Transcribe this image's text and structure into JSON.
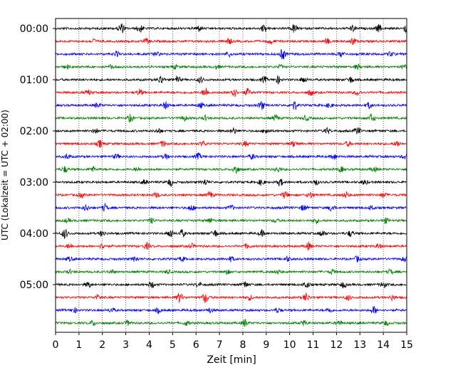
{
  "chart_data": {
    "type": "line",
    "chart_kind": "helicorder",
    "title": "",
    "xlabel": "Zeit  [min]",
    "ylabel": "UTC (Lokalzeit = UTC + 02:00)",
    "xlim": [
      0,
      15
    ],
    "x_ticks": [
      0,
      1,
      2,
      3,
      4,
      5,
      6,
      7,
      8,
      9,
      10,
      11,
      12,
      13,
      14,
      15
    ],
    "x_tick_labels": [
      "0",
      "1",
      "2",
      "3",
      "4",
      "5",
      "6",
      "7",
      "8",
      "9",
      "10",
      "11",
      "12",
      "13",
      "14",
      "15"
    ],
    "grid": "vertical dotted at each minute",
    "row_interval_min": 15,
    "y_tick_labels": [
      "00:00",
      "01:00",
      "02:00",
      "03:00",
      "04:00",
      "05:00"
    ],
    "y_tick_rows": [
      0,
      4,
      8,
      12,
      16,
      20
    ],
    "row_count": 24,
    "row_colors": [
      "#000000",
      "#ff0000",
      "#0000ff",
      "#008000"
    ],
    "bursts": [
      [
        [
          2.8,
          0.9
        ],
        [
          3.6,
          0.7
        ],
        [
          6.1,
          0.5
        ],
        [
          8.9,
          0.6
        ],
        [
          10.2,
          0.7
        ],
        [
          12.7,
          0.5
        ],
        [
          13.8,
          0.6
        ],
        [
          15.0,
          0.8
        ]
      ],
      [
        [
          1.6,
          0.4
        ],
        [
          3.9,
          0.4
        ],
        [
          7.4,
          0.5
        ],
        [
          9.2,
          0.4
        ],
        [
          11.6,
          0.4
        ],
        [
          12.7,
          0.6
        ]
      ],
      [
        [
          2.6,
          0.4
        ],
        [
          4.3,
          0.4
        ],
        [
          7.4,
          0.4
        ],
        [
          9.7,
          0.9
        ],
        [
          12.2,
          0.5
        ],
        [
          14.3,
          0.4
        ]
      ],
      [
        [
          0.5,
          0.3
        ],
        [
          2.4,
          0.3
        ],
        [
          5.1,
          0.3
        ],
        [
          6.9,
          0.3
        ],
        [
          9.6,
          0.3
        ],
        [
          12.9,
          0.4
        ],
        [
          14.9,
          0.3
        ]
      ],
      [
        [
          4.5,
          0.7
        ],
        [
          5.2,
          0.6
        ],
        [
          6.2,
          0.5
        ],
        [
          8.9,
          0.5
        ],
        [
          9.5,
          0.6
        ],
        [
          10.6,
          0.5
        ],
        [
          12.6,
          0.5
        ]
      ],
      [
        [
          1.4,
          0.4
        ],
        [
          3.6,
          0.5
        ],
        [
          6.4,
          0.8
        ],
        [
          7.6,
          0.9
        ],
        [
          8.2,
          0.6
        ],
        [
          10.9,
          0.5
        ],
        [
          12.9,
          0.4
        ]
      ],
      [
        [
          1.8,
          0.4
        ],
        [
          4.7,
          0.6
        ],
        [
          6.2,
          0.4
        ],
        [
          8.8,
          0.7
        ],
        [
          10.2,
          0.8
        ],
        [
          11.7,
          0.4
        ],
        [
          13.4,
          0.5
        ]
      ],
      [
        [
          3.2,
          0.6
        ],
        [
          5.5,
          0.4
        ],
        [
          6.4,
          0.4
        ],
        [
          9.4,
          0.5
        ],
        [
          10.7,
          0.4
        ],
        [
          13.5,
          0.7
        ]
      ],
      [
        [
          1.7,
          0.4
        ],
        [
          4.4,
          0.4
        ],
        [
          7.6,
          0.5
        ],
        [
          9.0,
          0.5
        ],
        [
          11.6,
          0.5
        ],
        [
          12.9,
          0.6
        ]
      ],
      [
        [
          1.9,
          0.6
        ],
        [
          4.6,
          0.5
        ],
        [
          6.3,
          0.4
        ],
        [
          8.1,
          0.4
        ],
        [
          10.2,
          0.5
        ],
        [
          12.5,
          0.4
        ],
        [
          14.6,
          0.5
        ]
      ],
      [
        [
          0.5,
          0.4
        ],
        [
          2.6,
          0.4
        ],
        [
          4.7,
          0.4
        ],
        [
          6.1,
          0.5
        ],
        [
          8.4,
          0.4
        ],
        [
          11.9,
          0.5
        ],
        [
          14.9,
          0.3
        ]
      ],
      [
        [
          0.4,
          0.5
        ],
        [
          1.6,
          0.4
        ],
        [
          3.5,
          0.3
        ],
        [
          7.7,
          0.8
        ],
        [
          9.5,
          0.4
        ],
        [
          12.2,
          0.4
        ],
        [
          13.6,
          0.4
        ]
      ],
      [
        [
          3.8,
          0.4
        ],
        [
          4.9,
          0.6
        ],
        [
          6.4,
          0.5
        ],
        [
          8.8,
          0.5
        ],
        [
          9.6,
          0.6
        ],
        [
          11.1,
          0.5
        ],
        [
          13.2,
          0.4
        ]
      ],
      [
        [
          1.1,
          0.4
        ],
        [
          4.3,
          0.4
        ],
        [
          6.6,
          0.5
        ],
        [
          9.8,
          0.6
        ],
        [
          10.9,
          0.5
        ],
        [
          12.4,
          0.5
        ],
        [
          14.0,
          0.4
        ]
      ],
      [
        [
          1.3,
          0.5
        ],
        [
          2.1,
          0.6
        ],
        [
          5.8,
          0.5
        ],
        [
          7.5,
          0.4
        ],
        [
          10.6,
          0.5
        ],
        [
          11.8,
          0.6
        ],
        [
          13.5,
          0.4
        ]
      ],
      [
        [
          0.5,
          0.3
        ],
        [
          4.1,
          0.4
        ],
        [
          6.6,
          0.4
        ],
        [
          9.4,
          0.3
        ],
        [
          11.1,
          0.4
        ],
        [
          14.1,
          0.4
        ]
      ],
      [
        [
          0.4,
          0.8
        ],
        [
          2.0,
          0.5
        ],
        [
          4.9,
          0.7
        ],
        [
          5.4,
          0.6
        ],
        [
          6.8,
          0.6
        ],
        [
          8.8,
          0.5
        ],
        [
          11.4,
          0.5
        ],
        [
          12.6,
          0.5
        ]
      ],
      [
        [
          0.6,
          0.4
        ],
        [
          2.0,
          0.4
        ],
        [
          3.9,
          0.5
        ],
        [
          5.8,
          0.4
        ],
        [
          8.2,
          0.4
        ],
        [
          10.8,
          0.6
        ],
        [
          13.8,
          0.4
        ]
      ],
      [
        [
          0.6,
          0.3
        ],
        [
          3.4,
          0.4
        ],
        [
          5.4,
          0.4
        ],
        [
          7.5,
          0.4
        ],
        [
          9.9,
          0.4
        ],
        [
          12.9,
          0.5
        ],
        [
          14.9,
          0.4
        ]
      ],
      [
        [
          0.6,
          0.3
        ],
        [
          2.4,
          0.3
        ],
        [
          4.8,
          0.3
        ],
        [
          7.3,
          0.4
        ],
        [
          9.5,
          0.3
        ],
        [
          11.8,
          0.4
        ],
        [
          14.3,
          0.4
        ]
      ],
      [
        [
          1.4,
          0.5
        ],
        [
          4.1,
          0.5
        ],
        [
          6.1,
          0.4
        ],
        [
          8.1,
          0.5
        ],
        [
          10.7,
          0.6
        ],
        [
          12.3,
          0.5
        ],
        [
          14.0,
          0.5
        ]
      ],
      [
        [
          1.8,
          0.4
        ],
        [
          5.3,
          0.8
        ],
        [
          6.4,
          0.9
        ],
        [
          8.3,
          0.4
        ],
        [
          10.7,
          0.7
        ],
        [
          12.5,
          0.4
        ],
        [
          14.4,
          0.4
        ]
      ],
      [
        [
          0.8,
          0.4
        ],
        [
          2.4,
          0.4
        ],
        [
          4.4,
          0.4
        ],
        [
          6.6,
          0.4
        ],
        [
          9.5,
          0.4
        ],
        [
          11.7,
          0.4
        ],
        [
          13.6,
          0.6
        ]
      ],
      [
        [
          1.6,
          0.4
        ],
        [
          3.1,
          0.4
        ],
        [
          5.6,
          0.4
        ],
        [
          8.1,
          0.6
        ],
        [
          10.6,
          0.4
        ],
        [
          12.1,
          0.4
        ],
        [
          14.1,
          0.4
        ]
      ]
    ]
  }
}
